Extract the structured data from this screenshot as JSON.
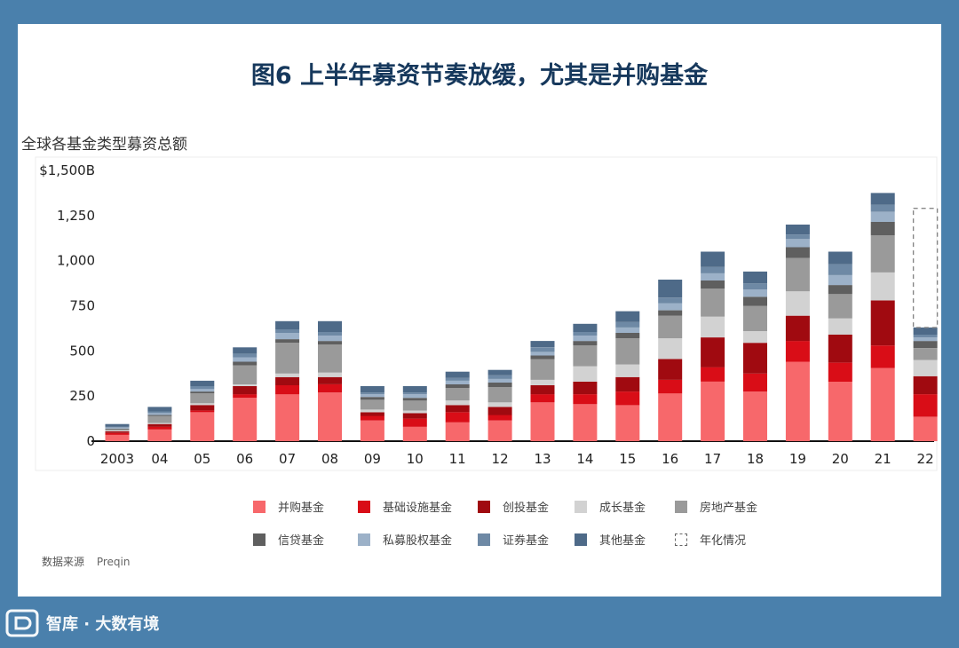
{
  "header": {
    "title": "图6 上半年募资节奏放缓，尤其是并购基金"
  },
  "chart_data": {
    "type": "stacked-bar",
    "subtitle": "全球各基金类型募资总额",
    "y_ticks": [
      "$1,500B",
      "1,250",
      "1,000",
      "750",
      "500",
      "250",
      "0"
    ],
    "ylim": [
      0,
      1500
    ],
    "categories": [
      "2003",
      "04",
      "05",
      "06",
      "07",
      "08",
      "09",
      "10",
      "11",
      "12",
      "13",
      "14",
      "15",
      "16",
      "17",
      "18",
      "19",
      "20",
      "21",
      "22"
    ],
    "series": [
      {
        "name": "并购基金",
        "color": "#f7686b",
        "values": [
          35,
          65,
          160,
          240,
          260,
          270,
          115,
          80,
          105,
          115,
          215,
          205,
          200,
          265,
          330,
          275,
          440,
          330,
          405,
          135
        ]
      },
      {
        "name": "基础设施基金",
        "color": "#d90d17",
        "values": [
          10,
          15,
          10,
          20,
          50,
          45,
          25,
          45,
          55,
          30,
          45,
          55,
          75,
          75,
          80,
          100,
          115,
          105,
          125,
          125
        ]
      },
      {
        "name": "创投基金",
        "color": "#a00a10",
        "values": [
          10,
          15,
          30,
          45,
          45,
          40,
          20,
          30,
          40,
          45,
          50,
          70,
          80,
          115,
          165,
          170,
          140,
          155,
          250,
          100
        ]
      },
      {
        "name": "成长基金",
        "color": "#d2d2d2",
        "values": [
          5,
          5,
          10,
          10,
          20,
          25,
          15,
          15,
          25,
          25,
          30,
          85,
          70,
          115,
          115,
          65,
          135,
          90,
          155,
          90
        ]
      },
      {
        "name": "房地产基金",
        "color": "#9a9a9a",
        "values": [
          5,
          40,
          55,
          105,
          170,
          155,
          55,
          55,
          70,
          85,
          115,
          115,
          145,
          125,
          155,
          140,
          185,
          135,
          205,
          65
        ]
      },
      {
        "name": "信贷基金",
        "color": "#5f5f5f",
        "values": [
          5,
          5,
          10,
          20,
          20,
          20,
          15,
          15,
          20,
          25,
          20,
          25,
          30,
          30,
          45,
          50,
          60,
          50,
          75,
          40
        ]
      },
      {
        "name": "私募股权基金",
        "color": "#9cb1c8",
        "values": [
          5,
          10,
          15,
          25,
          35,
          30,
          15,
          20,
          20,
          20,
          20,
          30,
          30,
          40,
          40,
          40,
          45,
          55,
          55,
          20
        ]
      },
      {
        "name": "证券基金",
        "color": "#6e89a5",
        "values": [
          5,
          10,
          15,
          20,
          20,
          20,
          10,
          10,
          15,
          20,
          25,
          20,
          30,
          30,
          35,
          35,
          25,
          60,
          40,
          15
        ]
      },
      {
        "name": "其他基金",
        "color": "#4e6a88",
        "values": [
          15,
          25,
          30,
          35,
          45,
          60,
          35,
          35,
          35,
          30,
          35,
          45,
          60,
          100,
          85,
          65,
          55,
          70,
          65,
          40
        ]
      }
    ],
    "annualized": {
      "name": "年化情况",
      "index": 19,
      "value": 1290
    }
  },
  "source": {
    "label": "数据来源",
    "value": "Preqin"
  },
  "watermark": {
    "text": "智库 · 大数有境"
  }
}
